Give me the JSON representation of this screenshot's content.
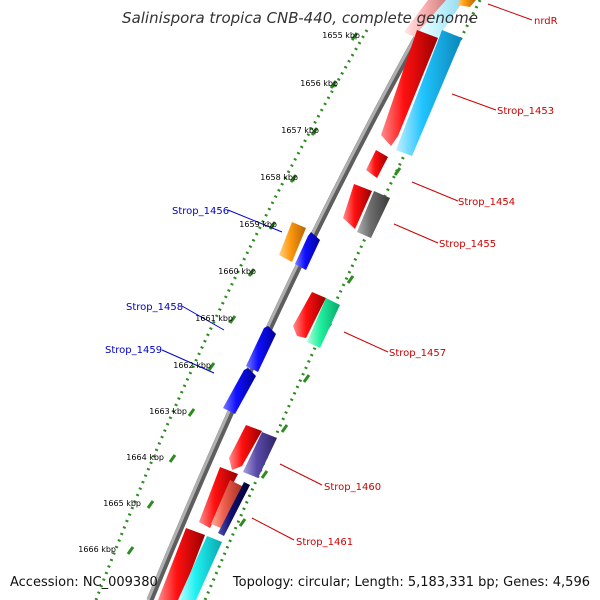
{
  "title": "Salinispora tropica CNB-440, complete genome",
  "footer": {
    "accession": "Accession: NC_009380",
    "topology": "Topology: circular; Length: 5,183,331 bp; Genes: 4,596"
  },
  "colors": {
    "ruler": "#2e8b22",
    "backbone": "#7d7d7d",
    "label_forward": "#0000cc",
    "label_reverse": "#cc0000"
  },
  "ticks": [
    "1655 kbp",
    "1656 kbp",
    "1657 kbp",
    "1658 kbp",
    "1659 kbp",
    "1660 kbp",
    "1661 kbp",
    "1662 kbp",
    "1663 kbp",
    "1664 kbp",
    "1665 kbp",
    "1666 kbp"
  ],
  "labels": [
    {
      "text": "nrdR",
      "strand": "reverse"
    },
    {
      "text": "Strop_1453",
      "strand": "reverse"
    },
    {
      "text": "Strop_1454",
      "strand": "reverse"
    },
    {
      "text": "Strop_1455",
      "strand": "reverse"
    },
    {
      "text": "Strop_1456",
      "strand": "forward"
    },
    {
      "text": "Strop_1457",
      "strand": "reverse"
    },
    {
      "text": "Strop_1458",
      "strand": "forward"
    },
    {
      "text": "Strop_1459",
      "strand": "forward"
    },
    {
      "text": "Strop_1460",
      "strand": "reverse"
    },
    {
      "text": "Strop_1461",
      "strand": "reverse"
    }
  ]
}
